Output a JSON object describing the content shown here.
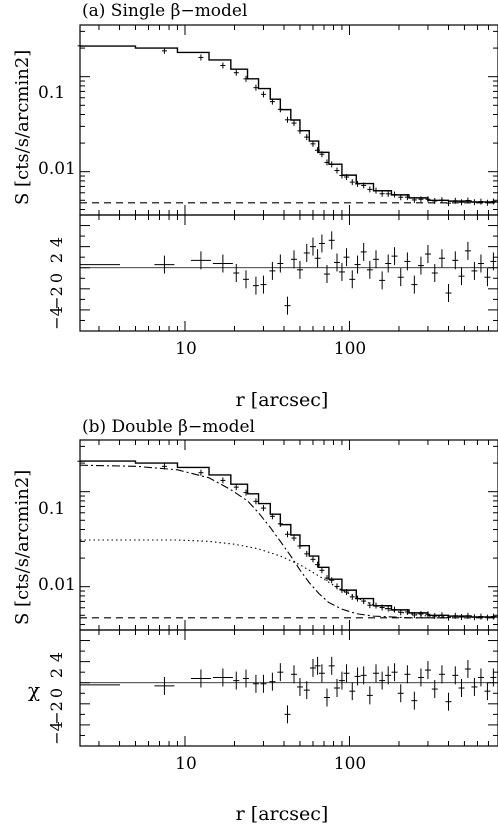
{
  "chart_data": [
    {
      "type": "line",
      "title": "(a) Single β−model",
      "xlabel": "r [arcsec]",
      "ylabel": "S [cts/s/arcmin2]",
      "xscale": "log",
      "yscale": "log",
      "xlim": [
        2.3,
        800
      ],
      "ylim": [
        0.0035,
        0.35
      ],
      "x_ticks": [
        "10",
        "100"
      ],
      "y_ticks": [
        "0.1",
        "0.01"
      ],
      "background_level": 0.0047,
      "series": [
        {
          "kind": "model-step",
          "x": [
            2.3,
            5,
            9,
            14,
            19,
            24,
            28,
            33,
            38,
            44,
            50,
            57,
            65,
            75,
            90,
            110,
            140,
            180,
            230,
            300,
            400,
            550,
            800
          ],
          "y": [
            0.21,
            0.2,
            0.18,
            0.15,
            0.12,
            0.095,
            0.075,
            0.058,
            0.045,
            0.035,
            0.027,
            0.021,
            0.016,
            0.012,
            0.0092,
            0.0075,
            0.0063,
            0.0057,
            0.0053,
            0.005,
            0.0049,
            0.0048,
            0.0048
          ]
        },
        {
          "kind": "background",
          "x": [
            2.3,
            800
          ],
          "y": [
            0.0047,
            0.0047
          ]
        }
      ],
      "residuals": {
        "ylabel": "",
        "ylim": [
          -6,
          5
        ],
        "y_ticks": [
          "4",
          "2",
          "0",
          "−2",
          "−4"
        ],
        "points": [
          [
            2.3,
            0.3
          ],
          [
            7.5,
            0.3
          ],
          [
            12.5,
            0.7
          ],
          [
            17,
            0.4
          ],
          [
            20.5,
            -0.5
          ],
          [
            23.5,
            -1.1
          ],
          [
            27,
            -1.7
          ],
          [
            30,
            -1.6
          ],
          [
            34,
            -0.3
          ],
          [
            38,
            0.4
          ],
          [
            42,
            -3.6
          ],
          [
            46,
            0.8
          ],
          [
            50,
            -0.2
          ],
          [
            55,
            1.4
          ],
          [
            60,
            2.0
          ],
          [
            64,
            0.9
          ],
          [
            68,
            2.3
          ],
          [
            73,
            -0.6
          ],
          [
            78,
            2.6
          ],
          [
            84,
            0.5
          ],
          [
            90,
            -0.4
          ],
          [
            96,
            1.0
          ],
          [
            104,
            -1.1
          ],
          [
            112,
            0.3
          ],
          [
            122,
            1.5
          ],
          [
            133,
            -0.2
          ],
          [
            145,
            0.8
          ],
          [
            158,
            -1.2
          ],
          [
            172,
            0.4
          ],
          [
            188,
            1.1
          ],
          [
            205,
            -0.9
          ],
          [
            225,
            0.6
          ],
          [
            248,
            -1.6
          ],
          [
            272,
            0.2
          ],
          [
            300,
            1.3
          ],
          [
            330,
            -0.5
          ],
          [
            365,
            0.9
          ],
          [
            400,
            -2.4
          ],
          [
            440,
            0.7
          ],
          [
            480,
            -0.8
          ],
          [
            525,
            1.6
          ],
          [
            575,
            -0.3
          ],
          [
            630,
            0.4
          ],
          [
            690,
            -0.9
          ],
          [
            750,
            0.6
          ]
        ]
      }
    },
    {
      "type": "line",
      "title": "(b) Double β−model",
      "xlabel": "r [arcsec]",
      "ylabel": "S [cts/s/arcmin2]",
      "xscale": "log",
      "yscale": "log",
      "xlim": [
        2.3,
        800
      ],
      "ylim": [
        0.0035,
        0.35
      ],
      "x_ticks": [
        "10",
        "100"
      ],
      "y_ticks": [
        "0.1",
        "0.01"
      ],
      "background_level": 0.0047,
      "series": [
        {
          "kind": "model-step",
          "x": [
            2.3,
            5,
            9,
            14,
            19,
            24,
            28,
            33,
            38,
            44,
            50,
            57,
            65,
            75,
            90,
            110,
            140,
            180,
            230,
            300,
            400,
            550,
            800
          ],
          "y": [
            0.21,
            0.2,
            0.18,
            0.15,
            0.12,
            0.095,
            0.075,
            0.058,
            0.045,
            0.035,
            0.027,
            0.021,
            0.016,
            0.012,
            0.0092,
            0.0075,
            0.0063,
            0.0057,
            0.0053,
            0.005,
            0.0049,
            0.0048,
            0.0048
          ]
        },
        {
          "kind": "component-1",
          "x": [
            2.3,
            5,
            9,
            14,
            19,
            24,
            28,
            33,
            38,
            44,
            50,
            57,
            65,
            75,
            90,
            110,
            140,
            180,
            230,
            300,
            400
          ],
          "y": [
            0.19,
            0.185,
            0.17,
            0.14,
            0.105,
            0.08,
            0.06,
            0.042,
            0.03,
            0.021,
            0.015,
            0.011,
            0.0085,
            0.0068,
            0.0058,
            0.0052,
            0.0049,
            0.0048,
            0.0047,
            0.0047,
            0.0047
          ]
        },
        {
          "kind": "component-2",
          "x": [
            2.3,
            5,
            9,
            14,
            20,
            28,
            38,
            50,
            65,
            85,
            110,
            140,
            180,
            230,
            300,
            400
          ],
          "y": [
            0.031,
            0.031,
            0.031,
            0.03,
            0.028,
            0.025,
            0.021,
            0.017,
            0.013,
            0.0097,
            0.0077,
            0.0064,
            0.0056,
            0.0052,
            0.0049,
            0.0048
          ]
        },
        {
          "kind": "background",
          "x": [
            2.3,
            800
          ],
          "y": [
            0.0047,
            0.0047
          ]
        }
      ],
      "residuals": {
        "ylabel": "χ",
        "ylim": [
          -6,
          5
        ],
        "y_ticks": [
          "4",
          "2",
          "0",
          "−2",
          "−4"
        ],
        "points": [
          [
            2.3,
            -0.2
          ],
          [
            7.5,
            -0.3
          ],
          [
            12.5,
            0.4
          ],
          [
            17,
            0.5
          ],
          [
            20.5,
            0.2
          ],
          [
            23.5,
            0.4
          ],
          [
            27,
            -0.1
          ],
          [
            30,
            -0.1
          ],
          [
            34,
            0.1
          ],
          [
            38,
            1.0
          ],
          [
            42,
            -3.0
          ],
          [
            46,
            0.8
          ],
          [
            50,
            -0.4
          ],
          [
            55,
            -0.7
          ],
          [
            60,
            1.4
          ],
          [
            64,
            1.6
          ],
          [
            68,
            0.9
          ],
          [
            73,
            -1.4
          ],
          [
            78,
            1.6
          ],
          [
            84,
            -0.5
          ],
          [
            90,
            0.2
          ],
          [
            96,
            0.9
          ],
          [
            104,
            -0.8
          ],
          [
            112,
            0.6
          ],
          [
            122,
            0.7
          ],
          [
            133,
            -1.2
          ],
          [
            145,
            0.9
          ],
          [
            158,
            0.2
          ],
          [
            172,
            0.7
          ],
          [
            188,
            1.0
          ],
          [
            205,
            -1.0
          ],
          [
            225,
            0.8
          ],
          [
            248,
            -1.7
          ],
          [
            272,
            0.5
          ],
          [
            300,
            1.2
          ],
          [
            330,
            -0.6
          ],
          [
            365,
            0.8
          ],
          [
            400,
            -1.8
          ],
          [
            440,
            0.7
          ],
          [
            480,
            -0.5
          ],
          [
            525,
            1.3
          ],
          [
            575,
            -0.4
          ],
          [
            630,
            0.5
          ],
          [
            690,
            -0.8
          ],
          [
            750,
            0.5
          ]
        ]
      }
    }
  ]
}
